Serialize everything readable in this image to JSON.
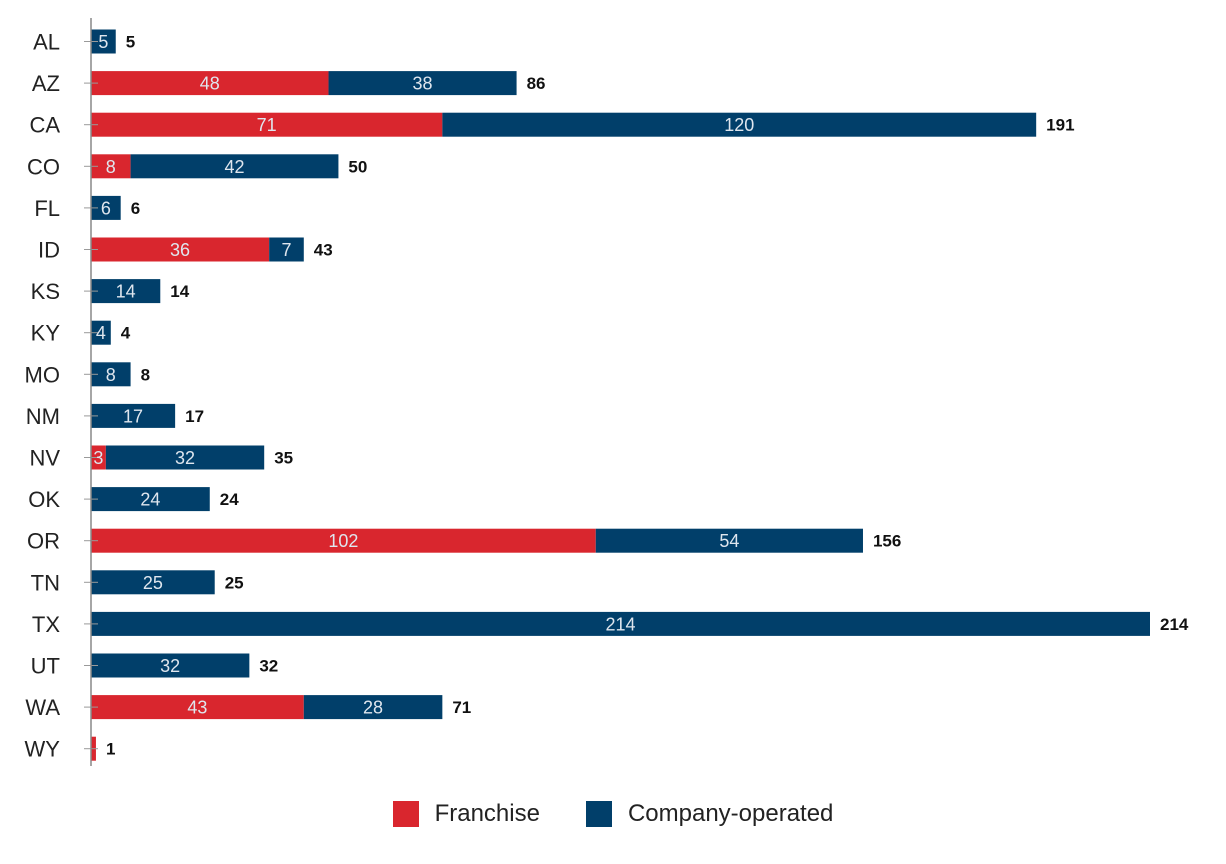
{
  "chart_data": {
    "type": "bar",
    "orientation": "horizontal",
    "stacked": true,
    "categories": [
      "AL",
      "AZ",
      "CA",
      "CO",
      "FL",
      "ID",
      "KS",
      "KY",
      "MO",
      "NM",
      "NV",
      "OK",
      "OR",
      "TN",
      "TX",
      "UT",
      "WA",
      "WY"
    ],
    "series": [
      {
        "name": "Franchise",
        "color": "#d9262e",
        "values": [
          0,
          48,
          71,
          8,
          0,
          36,
          0,
          0,
          0,
          0,
          3,
          0,
          102,
          0,
          0,
          0,
          43,
          1
        ],
        "labels": [
          "",
          "48",
          "71",
          "8",
          "",
          "36",
          "",
          "",
          "",
          "",
          "3",
          "",
          "102",
          "",
          "",
          "",
          "43",
          ""
        ]
      },
      {
        "name": "Company-operated",
        "color": "#013f6a",
        "values": [
          5,
          38,
          120,
          42,
          6,
          7,
          14,
          4,
          8,
          17,
          32,
          24,
          54,
          25,
          214,
          32,
          28,
          0
        ],
        "labels": [
          "5",
          "38",
          "120",
          "42",
          "6",
          "7",
          "14",
          "4",
          "8",
          "17",
          "32",
          "24",
          "54",
          "25",
          "214",
          "32",
          "28",
          ""
        ]
      }
    ],
    "totals": [
      "5",
      "86",
      "191",
      "50",
      "6",
      "43",
      "14",
      "4",
      "8",
      "17",
      "35",
      "24",
      "156",
      "25",
      "214",
      "32",
      "71",
      "1"
    ],
    "xlim": [
      0,
      214
    ],
    "legend_position": "bottom-center",
    "grid": false
  }
}
